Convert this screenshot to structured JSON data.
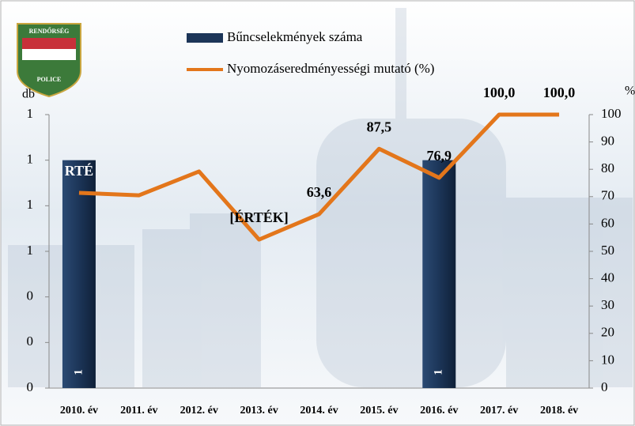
{
  "logo": {
    "top": "RENDŐRSÉG",
    "bottom": "POLICE"
  },
  "chart_data": {
    "type": "bar_line",
    "categories": [
      "2010. év",
      "2011. év",
      "2012. év",
      "2013. év",
      "2014. év",
      "2015. év",
      "2016. év",
      "2017. év",
      "2018. év"
    ],
    "series": [
      {
        "name": "Bűncselekmények száma",
        "type": "bar",
        "color": "#1c3558",
        "values": [
          1,
          null,
          null,
          null,
          null,
          null,
          1,
          null,
          null
        ]
      },
      {
        "name": "Nyomozáseredményességi mutató (%)",
        "type": "line",
        "axis": "y2",
        "color": "#e3761b",
        "values": [
          71.4,
          70.5,
          79.2,
          54.3,
          63.6,
          87.5,
          76.9,
          100,
          100
        ],
        "value_labels": [
          "RTÉ",
          null,
          null,
          "[ÉRTÉK]",
          "63,6",
          "87,5",
          "76,9",
          "100,0",
          "100,0"
        ]
      }
    ],
    "ylabel": "db",
    "y2label": "%",
    "ylim": [
      0,
      1.2
    ],
    "yticks": [
      0,
      {
        "value": 0.2,
        "label": "0"
      },
      {
        "value": 0.4,
        "label": "0"
      },
      {
        "value": 0.6,
        "label": "1"
      },
      {
        "value": 0.8,
        "label": "1"
      },
      1,
      {
        "value": 1.2,
        "label": "1"
      }
    ],
    "y2lim": [
      0,
      100
    ],
    "y2ticks": [
      0,
      10,
      20,
      30,
      40,
      50,
      60,
      70,
      80,
      90,
      100
    ]
  }
}
